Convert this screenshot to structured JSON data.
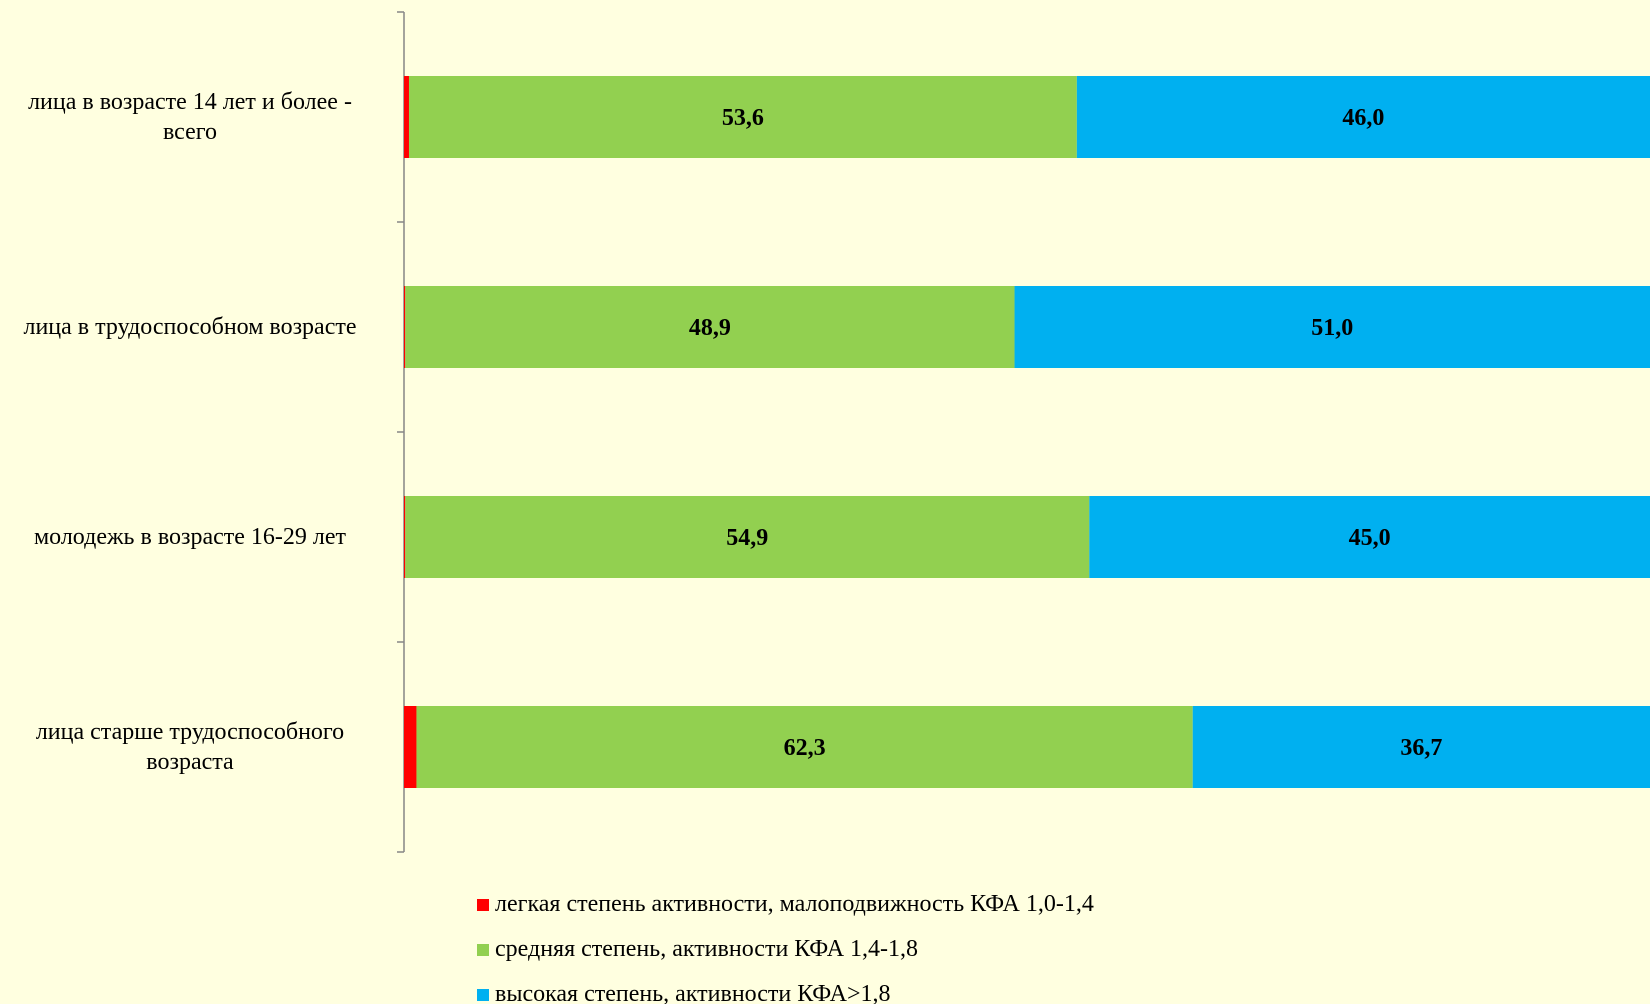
{
  "chart_data": {
    "type": "bar",
    "orientation": "horizontal",
    "stacked": true,
    "categories": [
      "лица в возрасте 14 лет и более - всего",
      "лица в трудоспособном возрасте",
      "молодежь в возрасте 16-29 лет",
      "лица старше трудоспособного возраста"
    ],
    "series": [
      {
        "name": "легкая степень активности, малоподвижность КФА 1,0-1,4",
        "color": "#ff0000",
        "values": [
          0.4,
          0.1,
          0.1,
          1.0
        ],
        "labels": [
          "0,4",
          "0,1",
          "0,1",
          "1,0"
        ]
      },
      {
        "name": "средняя степень, активности КФА 1,4-1,8",
        "color": "#92d050",
        "values": [
          53.6,
          48.9,
          54.9,
          62.3
        ],
        "labels": [
          "53,6",
          "48,9",
          "54,9",
          "62,3"
        ]
      },
      {
        "name": "высокая степень, активности КФА>1,8",
        "color": "#00b0f0",
        "values": [
          46.0,
          51.0,
          45.0,
          36.7
        ],
        "labels": [
          "46,0",
          "51,0",
          "45,0",
          "36,7"
        ]
      }
    ],
    "xlim": [
      0,
      100
    ],
    "grid": false,
    "legend_position": "bottom",
    "background": "#ffffe0"
  }
}
